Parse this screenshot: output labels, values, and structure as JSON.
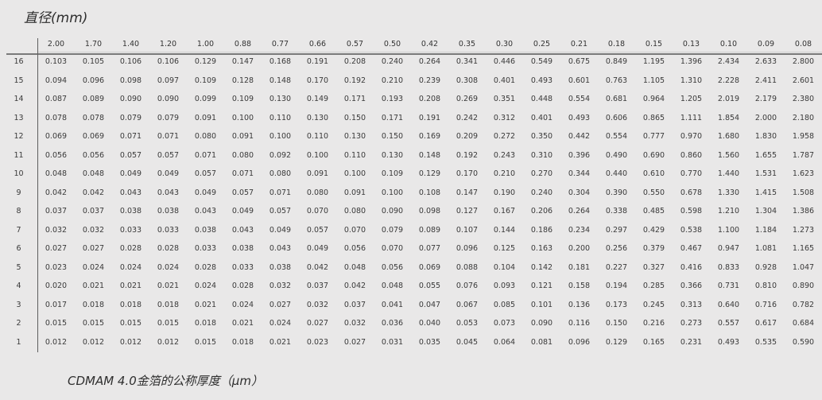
{
  "figure": {
    "title": "直径(mm)",
    "caption": "CDMAM 4.0金箔的公称厚度（μm）"
  },
  "colors": {
    "background": "#e9e8e8",
    "text": "#3a3a3a",
    "rule": "#7a7a7a"
  },
  "chart_data": {
    "type": "table",
    "title": "直径(mm)",
    "caption": "CDMAM 4.0金箔的公称厚度（μm）",
    "column_unit": "mm",
    "value_unit": "µm",
    "columns": [
      2.0,
      1.7,
      1.4,
      1.2,
      1.0,
      0.88,
      0.77,
      0.66,
      0.57,
      0.5,
      0.42,
      0.35,
      0.3,
      0.25,
      0.21,
      0.18,
      0.15,
      0.13,
      0.1,
      0.09,
      0.08
    ],
    "rows": [
      {
        "label": "16",
        "values": [
          0.103,
          0.105,
          0.106,
          0.106,
          0.129,
          0.147,
          0.168,
          0.191,
          0.208,
          0.24,
          0.264,
          0.341,
          0.446,
          0.549,
          0.675,
          0.849,
          1.195,
          1.396,
          2.434,
          2.633,
          2.8
        ]
      },
      {
        "label": "15",
        "values": [
          0.094,
          0.096,
          0.098,
          0.097,
          0.109,
          0.128,
          0.148,
          0.17,
          0.192,
          0.21,
          0.239,
          0.308,
          0.401,
          0.493,
          0.601,
          0.763,
          1.105,
          1.31,
          2.228,
          2.411,
          2.601
        ]
      },
      {
        "label": "14",
        "values": [
          0.087,
          0.089,
          0.09,
          0.09,
          0.099,
          0.109,
          0.13,
          0.149,
          0.171,
          0.193,
          0.208,
          0.269,
          0.351,
          0.448,
          0.554,
          0.681,
          0.964,
          1.205,
          2.019,
          2.179,
          2.38
        ]
      },
      {
        "label": "13",
        "values": [
          0.078,
          0.078,
          0.079,
          0.079,
          0.091,
          0.1,
          0.11,
          0.13,
          0.15,
          0.171,
          0.191,
          0.242,
          0.312,
          0.401,
          0.493,
          0.606,
          0.865,
          1.111,
          1.854,
          2.0,
          2.18
        ]
      },
      {
        "label": "12",
        "values": [
          0.069,
          0.069,
          0.071,
          0.071,
          0.08,
          0.091,
          0.1,
          0.11,
          0.13,
          0.15,
          0.169,
          0.209,
          0.272,
          0.35,
          0.442,
          0.554,
          0.777,
          0.97,
          1.68,
          1.83,
          1.958
        ]
      },
      {
        "label": "11",
        "values": [
          0.056,
          0.056,
          0.057,
          0.057,
          0.071,
          0.08,
          0.092,
          0.1,
          0.11,
          0.13,
          0.148,
          0.192,
          0.243,
          0.31,
          0.396,
          0.49,
          0.69,
          0.86,
          1.56,
          1.655,
          1.787
        ]
      },
      {
        "label": "10",
        "values": [
          0.048,
          0.048,
          0.049,
          0.049,
          0.057,
          0.071,
          0.08,
          0.091,
          0.1,
          0.109,
          0.129,
          0.17,
          0.21,
          0.27,
          0.344,
          0.44,
          0.61,
          0.77,
          1.44,
          1.531,
          1.623
        ]
      },
      {
        "label": "9",
        "values": [
          0.042,
          0.042,
          0.043,
          0.043,
          0.049,
          0.057,
          0.071,
          0.08,
          0.091,
          0.1,
          0.108,
          0.147,
          0.19,
          0.24,
          0.304,
          0.39,
          0.55,
          0.678,
          1.33,
          1.415,
          1.508
        ]
      },
      {
        "label": "8",
        "values": [
          0.037,
          0.037,
          0.038,
          0.038,
          0.043,
          0.049,
          0.057,
          0.07,
          0.08,
          0.09,
          0.098,
          0.127,
          0.167,
          0.206,
          0.264,
          0.338,
          0.485,
          0.598,
          1.21,
          1.304,
          1.386
        ]
      },
      {
        "label": "7",
        "values": [
          0.032,
          0.032,
          0.033,
          0.033,
          0.038,
          0.043,
          0.049,
          0.057,
          0.07,
          0.079,
          0.089,
          0.107,
          0.144,
          0.186,
          0.234,
          0.297,
          0.429,
          0.538,
          1.1,
          1.184,
          1.273
        ]
      },
      {
        "label": "6",
        "values": [
          0.027,
          0.027,
          0.028,
          0.028,
          0.033,
          0.038,
          0.043,
          0.049,
          0.056,
          0.07,
          0.077,
          0.096,
          0.125,
          0.163,
          0.2,
          0.256,
          0.379,
          0.467,
          0.947,
          1.081,
          1.165
        ]
      },
      {
        "label": "5",
        "values": [
          0.023,
          0.024,
          0.024,
          0.024,
          0.028,
          0.033,
          0.038,
          0.042,
          0.048,
          0.056,
          0.069,
          0.088,
          0.104,
          0.142,
          0.181,
          0.227,
          0.327,
          0.416,
          0.833,
          0.928,
          1.047
        ]
      },
      {
        "label": "4",
        "values": [
          0.02,
          0.021,
          0.021,
          0.021,
          0.024,
          0.028,
          0.032,
          0.037,
          0.042,
          0.048,
          0.055,
          0.076,
          0.093,
          0.121,
          0.158,
          0.194,
          0.285,
          0.366,
          0.731,
          0.81,
          0.89
        ]
      },
      {
        "label": "3",
        "values": [
          0.017,
          0.018,
          0.018,
          0.018,
          0.021,
          0.024,
          0.027,
          0.032,
          0.037,
          0.041,
          0.047,
          0.067,
          0.085,
          0.101,
          0.136,
          0.173,
          0.245,
          0.313,
          0.64,
          0.716,
          0.782
        ]
      },
      {
        "label": "2",
        "values": [
          0.015,
          0.015,
          0.015,
          0.015,
          0.018,
          0.021,
          0.024,
          0.027,
          0.032,
          0.036,
          0.04,
          0.053,
          0.073,
          0.09,
          0.116,
          0.15,
          0.216,
          0.273,
          0.557,
          0.617,
          0.684
        ]
      },
      {
        "label": "1",
        "values": [
          0.012,
          0.012,
          0.012,
          0.012,
          0.015,
          0.018,
          0.021,
          0.023,
          0.027,
          0.031,
          0.035,
          0.045,
          0.064,
          0.081,
          0.096,
          0.129,
          0.165,
          0.231,
          0.493,
          0.535,
          0.59
        ]
      }
    ]
  }
}
